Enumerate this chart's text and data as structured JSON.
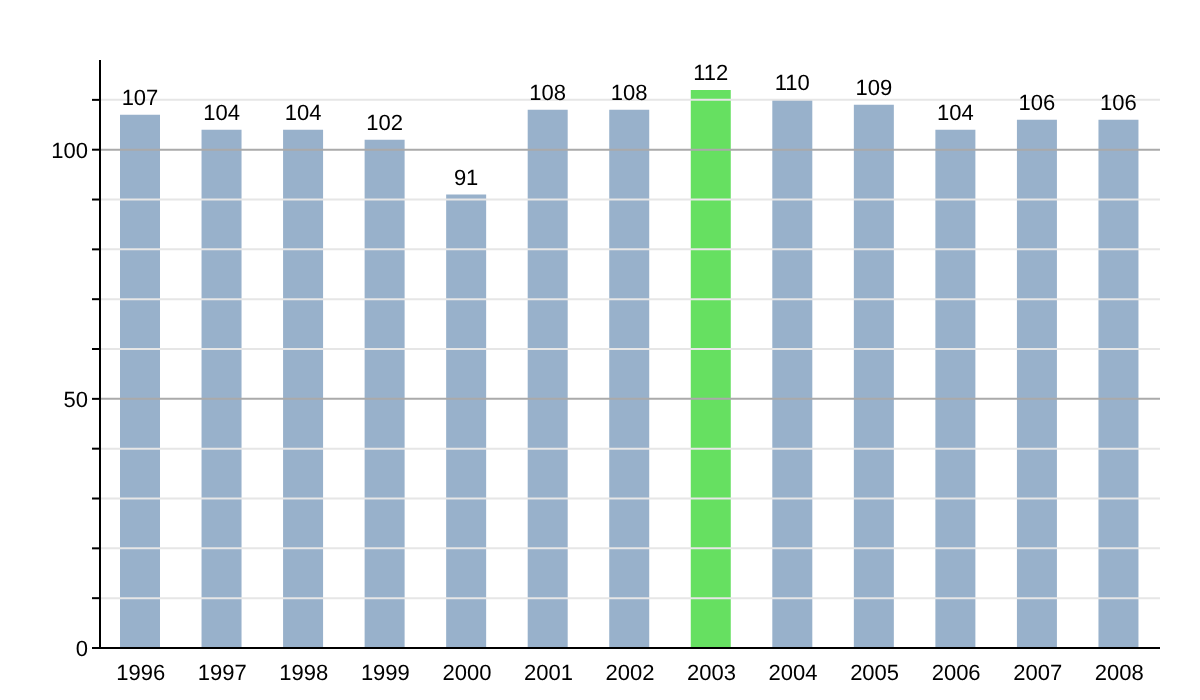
{
  "chart_data": {
    "type": "bar",
    "categories": [
      "1996",
      "1997",
      "1998",
      "1999",
      "2000",
      "2001",
      "2002",
      "2003",
      "2004",
      "2005",
      "2006",
      "2007",
      "2008"
    ],
    "values": [
      107,
      104,
      104,
      102,
      91,
      108,
      108,
      112,
      110,
      109,
      104,
      106,
      106
    ],
    "colors": [
      "#98b1cb",
      "#98b1cb",
      "#98b1cb",
      "#98b1cb",
      "#98b1cb",
      "#98b1cb",
      "#98b1cb",
      "#66e061",
      "#98b1cb",
      "#98b1cb",
      "#98b1cb",
      "#98b1cb",
      "#98b1cb"
    ],
    "ylim": [
      0,
      118
    ],
    "yticks": [
      0,
      {
        "value": 10,
        "label": null
      },
      {
        "value": 20,
        "label": null
      },
      {
        "value": 30,
        "label": null
      },
      {
        "value": 40,
        "label": null
      },
      50,
      {
        "value": 60,
        "label": null
      },
      {
        "value": 70,
        "label": null
      },
      {
        "value": 80,
        "label": null
      },
      {
        "value": 90,
        "label": null
      },
      100,
      {
        "value": 110,
        "label": null
      }
    ],
    "grid": true,
    "data_labels": true
  }
}
